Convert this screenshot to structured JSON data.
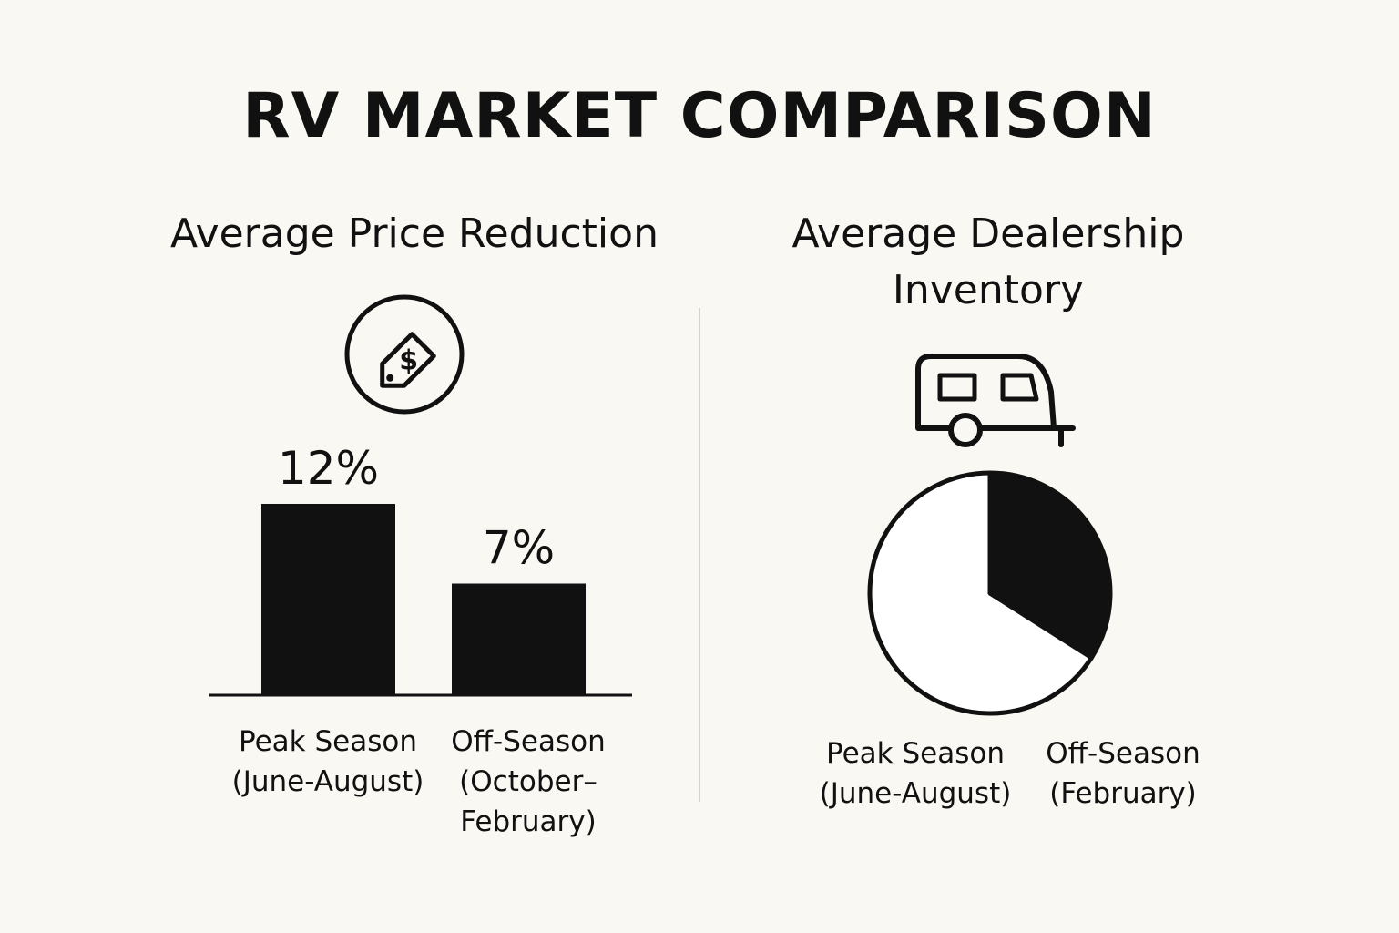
{
  "title": "RV MARKET COMPARISON",
  "chart_data": [
    {
      "type": "bar",
      "title": "Average Price Reduction",
      "icon": "price-tag-icon",
      "categories": [
        "Peak Season",
        "Off-Season"
      ],
      "category_details": [
        "(June-August)",
        "(October–\nFebruary)"
      ],
      "values": [
        12,
        7
      ],
      "value_labels": [
        "12%",
        "7%"
      ],
      "unit": "%",
      "ylim": [
        0,
        16
      ],
      "grid": false,
      "color": "#111111"
    },
    {
      "type": "pie",
      "title": "Average Dealership Inventory",
      "title_lines": [
        "Average Dealership",
        "Inventory"
      ],
      "icon": "camper-trailer-icon",
      "categories": [
        "Peak Season",
        "Off-Season"
      ],
      "category_details": [
        "(June-August)",
        "(February)"
      ],
      "values": [
        0.66,
        0.34
      ],
      "colors": [
        "#ffffff",
        "#111111"
      ]
    }
  ]
}
